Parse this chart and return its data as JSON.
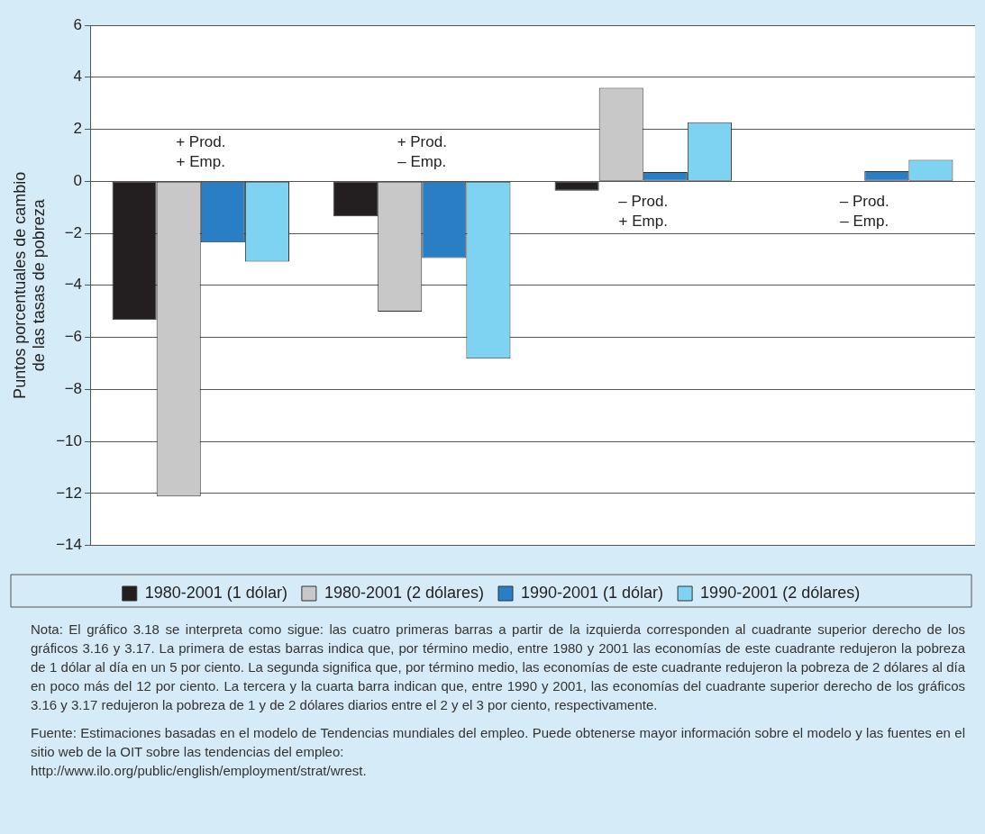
{
  "chart_data": {
    "type": "bar",
    "ylabel": "Puntos porcentuales de cambio\nde las tasas de pobreza",
    "categories": [
      null,
      null,
      null,
      null
    ],
    "series": [
      {
        "name": "1980-2001 (1 dólar)",
        "color": "#231f20",
        "values": [
          -5.33,
          -1.35,
          -0.36,
          null
        ]
      },
      {
        "name": "1980-2001 (2 dólares)",
        "color": "#c8c8c8",
        "values": [
          -12.12,
          -5.01,
          3.59,
          null
        ]
      },
      {
        "name": "1990-2001 (1 dólar)",
        "color": "#2a7fc4",
        "values": [
          -2.35,
          -2.95,
          0.36,
          0.39
        ]
      },
      {
        "name": "1990-2001 (2 dólares)",
        "color": "#7fd3f2",
        "values": [
          -3.09,
          -6.82,
          2.27,
          0.82
        ]
      }
    ],
    "ylim": [
      -14,
      6
    ],
    "yticks": [
      6,
      4,
      2,
      0,
      -2,
      -4,
      -6,
      -8,
      -10,
      -12,
      -14
    ],
    "grid": "y",
    "legend": "bottom",
    "annotations": [
      "+ Prod.\n+ Emp.",
      "+ Prod.\n– Emp.",
      "– Prod.\n+ Emp.",
      "– Prod.\n– Emp.",
      "Nota: El gráfico 3.18 se interpreta como sigue: las cuatro primeras barras a partir de la izquierda corresponden al cuadrante superior derecho de los gráficos 3.16 y 3.17. La primera de estas barras indica que, por término medio, entre 1980 y 2001 las economías de este cuadrante redujeron la pobreza de 1 dólar al día en un 5 por ciento. La segunda significa que, por término medio, las economías de este cuadrante redujeron la pobreza de 2 dólares al día en poco más del 12 por ciento. La tercera y la cuarta barra indican que, entre 1990 y 2001, las economías del cuadrante superior derecho de los gráficos 3.16 y 3.17 redujeron la pobreza de 1 y de 2 dólares diarios entre el 2 y el 3 por ciento, respectivamente.",
      "Fuente: Estimaciones basadas en el modelo de Tendencias mundiales del empleo. Puede obtenerse mayor información sobre el modelo y las fuentes en el sitio web de la OIT sobre las tendencias del empleo:\nhttp://www.ilo.org/public/english/employment/strat/wrest."
    ]
  }
}
